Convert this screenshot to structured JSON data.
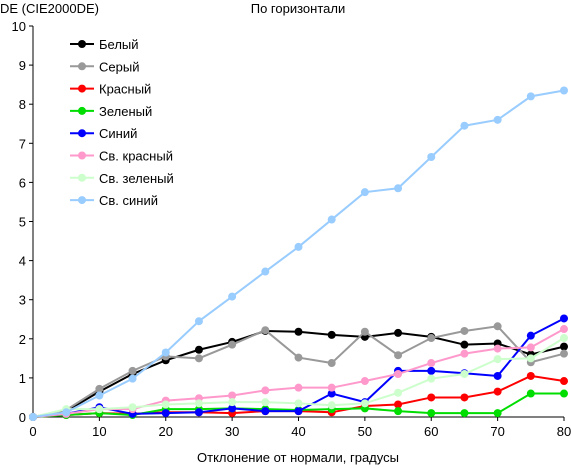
{
  "chart_data": {
    "type": "line",
    "title": "По горизонтали",
    "ylabel": "DE (CIE2000DE)",
    "xlabel": "Отклонение от нормали, градусы",
    "xlim": [
      0,
      80
    ],
    "ylim": [
      0,
      10
    ],
    "xticks": [
      0,
      10,
      20,
      30,
      40,
      50,
      60,
      70,
      80
    ],
    "yticks": [
      0,
      1,
      2,
      3,
      4,
      5,
      6,
      7,
      8,
      9,
      10
    ],
    "grid": false,
    "legend_position": "top-left",
    "x": [
      0,
      5,
      10,
      15,
      20,
      25,
      30,
      35,
      40,
      45,
      50,
      55,
      60,
      65,
      70,
      75,
      80
    ],
    "series": [
      {
        "name": "Белый",
        "color": "#000000",
        "values": [
          0,
          0.15,
          0.65,
          1.1,
          1.45,
          1.72,
          1.92,
          2.2,
          2.18,
          2.1,
          2.05,
          2.15,
          2.05,
          1.85,
          1.88,
          1.6,
          1.8
        ]
      },
      {
        "name": "Серый",
        "color": "#999999",
        "values": [
          0,
          0.18,
          0.72,
          1.18,
          1.55,
          1.5,
          1.85,
          2.22,
          1.52,
          1.38,
          2.18,
          1.58,
          2.02,
          2.2,
          2.32,
          1.4,
          1.62
        ]
      },
      {
        "name": "Красный",
        "color": "#ff0000",
        "values": [
          0,
          0.05,
          0.1,
          0.08,
          0.12,
          0.12,
          0.1,
          0.15,
          0.15,
          0.12,
          0.28,
          0.32,
          0.5,
          0.5,
          0.65,
          1.05,
          0.92
        ]
      },
      {
        "name": "Зеленый",
        "color": "#00dd00",
        "values": [
          0,
          0.05,
          0.1,
          0.05,
          0.2,
          0.2,
          0.22,
          0.2,
          0.18,
          0.2,
          0.22,
          0.15,
          0.1,
          0.1,
          0.1,
          0.6,
          0.6
        ]
      },
      {
        "name": "Синий",
        "color": "#0000ff",
        "values": [
          0,
          0.08,
          0.25,
          0.08,
          0.1,
          0.12,
          0.22,
          0.15,
          0.15,
          0.6,
          0.38,
          1.18,
          1.18,
          1.12,
          1.05,
          2.08,
          2.52
        ]
      },
      {
        "name": "Св. красный",
        "color": "#ff99cc",
        "values": [
          0,
          0.08,
          0.2,
          0.2,
          0.42,
          0.48,
          0.55,
          0.68,
          0.75,
          0.75,
          0.92,
          1.1,
          1.38,
          1.62,
          1.75,
          1.78,
          2.25
        ]
      },
      {
        "name": "Св. зеленый",
        "color": "#ccffcc",
        "values": [
          0,
          0.2,
          0.2,
          0.25,
          0.32,
          0.35,
          0.38,
          0.38,
          0.35,
          0.3,
          0.35,
          0.62,
          0.98,
          1.1,
          1.48,
          1.5,
          2.02
        ]
      },
      {
        "name": "Св. синий",
        "color": "#99ccff",
        "values": [
          0,
          0.12,
          0.55,
          0.98,
          1.65,
          2.45,
          3.08,
          3.72,
          4.35,
          5.05,
          5.75,
          5.85,
          6.65,
          7.45,
          7.6,
          8.2,
          8.35
        ]
      }
    ]
  }
}
